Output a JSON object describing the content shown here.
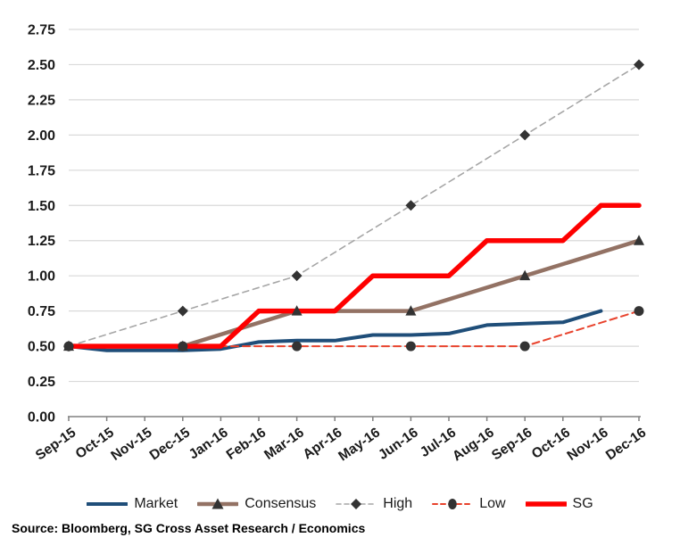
{
  "chart_data": {
    "type": "line",
    "title": "",
    "xlabel": "",
    "ylabel": "",
    "x": [
      "Sep-15",
      "Oct-15",
      "Nov-15",
      "Dec-15",
      "Jan-16",
      "Feb-16",
      "Mar-16",
      "Apr-16",
      "May-16",
      "Jun-16",
      "Jul-16",
      "Aug-16",
      "Sep-16",
      "Oct-16",
      "Nov-16",
      "Dec-16"
    ],
    "ylim": [
      0,
      2.75
    ],
    "yticks": [
      0,
      0.25,
      0.5,
      0.75,
      1.0,
      1.25,
      1.5,
      1.75,
      2.0,
      2.25,
      2.5,
      2.75
    ],
    "grid": true,
    "legend_position": "bottom",
    "source": "Source: Bloomberg, SG Cross Asset Research / Economics",
    "colors": {
      "gridline": "#D9D9D9",
      "axis": "#808080",
      "marker": "#333333"
    },
    "series": [
      {
        "name": "Market",
        "color": "#1F4E79",
        "width": 4,
        "dash": null,
        "marker": null,
        "x_idx": [
          0,
          1,
          2,
          3,
          4,
          5,
          6,
          7,
          8,
          9,
          10,
          11,
          12,
          13,
          14
        ],
        "values": [
          0.5,
          0.47,
          0.47,
          0.47,
          0.48,
          0.53,
          0.54,
          0.54,
          0.58,
          0.58,
          0.59,
          0.65,
          0.66,
          0.67,
          0.75
        ]
      },
      {
        "name": "Consensus",
        "color": "#937264",
        "width": 4.5,
        "dash": null,
        "marker": "triangle",
        "x_idx": [
          0,
          3,
          6,
          9,
          12,
          15
        ],
        "values": [
          0.5,
          0.5,
          0.75,
          0.75,
          1.0,
          1.25
        ]
      },
      {
        "name": "High",
        "color": "#A6A6A6",
        "width": 1.6,
        "dash": "7 5",
        "marker": "diamond",
        "x_idx": [
          0,
          3,
          6,
          9,
          12,
          15
        ],
        "values": [
          0.5,
          0.75,
          1.0,
          1.5,
          2.0,
          2.5
        ]
      },
      {
        "name": "Low",
        "color": "#E8432D",
        "width": 2,
        "dash": "8 5",
        "marker": "circle",
        "x_idx": [
          0,
          3,
          6,
          9,
          12,
          15
        ],
        "values": [
          0.5,
          0.5,
          0.5,
          0.5,
          0.5,
          0.75
        ]
      },
      {
        "name": "SG",
        "color": "#FE0000",
        "width": 5.5,
        "dash": null,
        "marker": null,
        "x_idx": [
          0,
          1,
          2,
          3,
          4,
          5,
          6,
          7,
          8,
          9,
          10,
          11,
          12,
          13,
          14,
          15
        ],
        "values": [
          0.5,
          0.5,
          0.5,
          0.5,
          0.5,
          0.75,
          0.75,
          0.75,
          1.0,
          1.0,
          1.0,
          1.25,
          1.25,
          1.25,
          1.5,
          1.5
        ]
      }
    ]
  }
}
